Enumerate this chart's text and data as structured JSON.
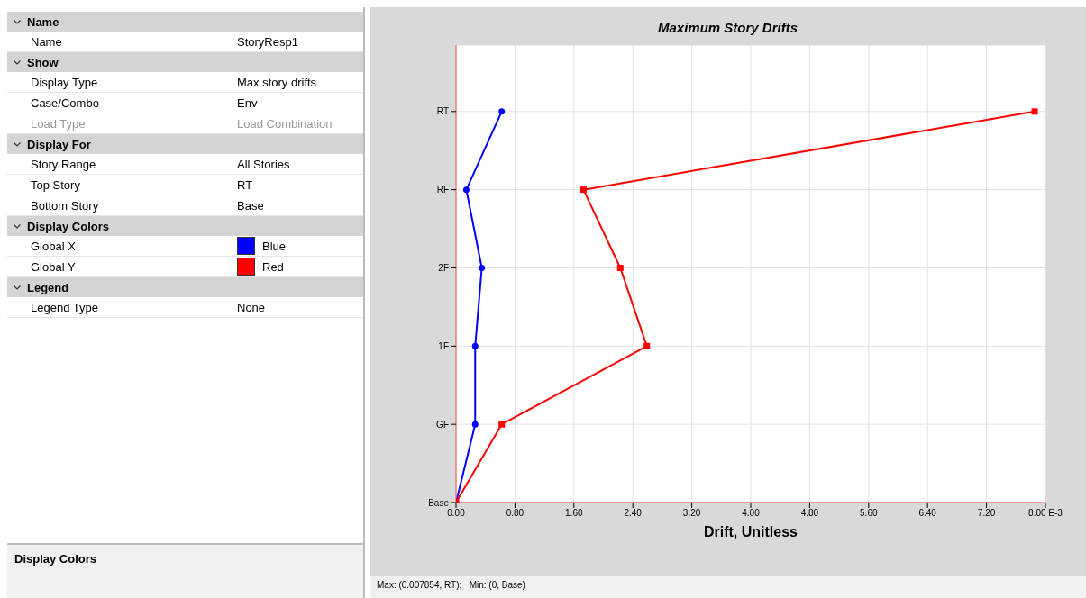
{
  "chart_data": [
    {
      "type": "other",
      "annotations": [
        "Name",
        "Name",
        "StoryResp1",
        "Show",
        "Display Type",
        "Max story drifts",
        "Case/Combo",
        "Env",
        "Load Type",
        "Load Combination",
        "Display For",
        "Story Range",
        "All Stories",
        "Top Story",
        "RT",
        "Bottom Story",
        "Base",
        "Display Colors",
        "Global X",
        "Blue",
        "Global Y",
        "Red",
        "Legend",
        "Legend Type",
        "None",
        "Display Colors"
      ]
    },
    {
      "type": "line",
      "orientation": "horizontal",
      "title": "Maximum Story Drifts",
      "xlabel": "Drift, Unitless",
      "categories": [
        "RT",
        "RF",
        "2F",
        "1F",
        "GF",
        "Base"
      ],
      "series": [
        {
          "color": "#0000ff",
          "marker": "circle",
          "values": [
            0.62,
            0.14,
            0.35,
            0.26,
            0.26,
            0
          ]
        },
        {
          "color": "#ff0000",
          "marker": "square",
          "values": [
            7.854,
            1.73,
            2.23,
            2.59,
            0.62,
            0
          ]
        }
      ],
      "xlim": [
        0,
        8
      ],
      "xticks": [
        {
          "value": 0,
          "label": "0.00"
        },
        {
          "value": 0.8,
          "label": "0.80"
        },
        {
          "value": 1.6,
          "label": "1.60"
        },
        {
          "value": 2.4,
          "label": "2.40"
        },
        {
          "value": 3.2,
          "label": "3.20"
        },
        {
          "value": 4,
          "label": "4.00"
        },
        {
          "value": 4.8,
          "label": "4.80"
        },
        {
          "value": 5.6,
          "label": "5.60"
        },
        {
          "value": 6.4,
          "label": "6.40"
        },
        {
          "value": 7.2,
          "label": "7.20"
        },
        {
          "value": 8,
          "label": "8.00 E-3"
        }
      ],
      "grid": true,
      "annotations": [
        "Max: (0.007854, RT);   Min: (0, Base)"
      ]
    }
  ]
}
